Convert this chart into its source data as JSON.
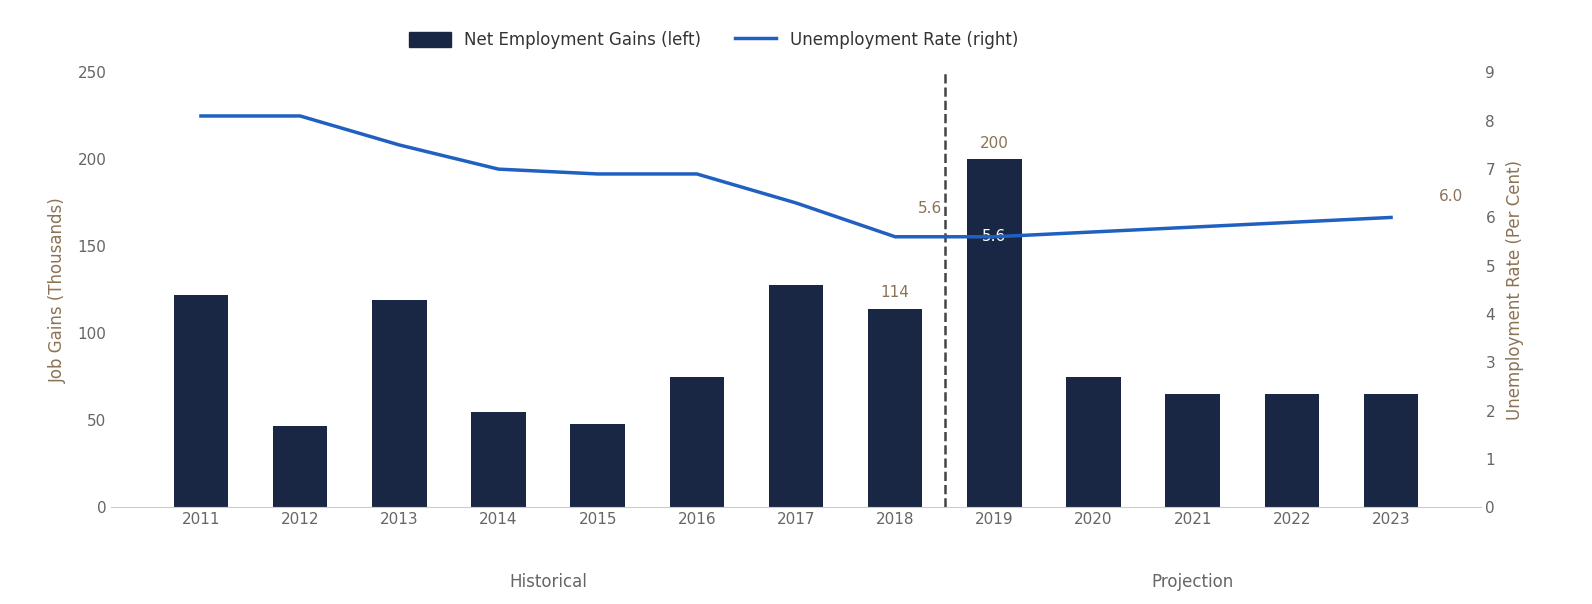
{
  "years": [
    2011,
    2012,
    2013,
    2014,
    2015,
    2016,
    2017,
    2018,
    2019,
    2020,
    2021,
    2022,
    2023
  ],
  "bar_values": [
    122,
    47,
    119,
    55,
    48,
    75,
    128,
    114,
    200,
    75,
    65,
    65,
    65
  ],
  "unemployment_rate": [
    8.1,
    8.1,
    7.5,
    7.0,
    6.9,
    6.9,
    6.3,
    5.6,
    5.6,
    5.7,
    5.8,
    5.9,
    6.0
  ],
  "bar_color": "#1a2744",
  "line_color": "#2060c0",
  "annotation_2018_bar": "114",
  "annotation_2018_rate": "5.6",
  "annotation_2019_bar": "200",
  "annotation_2019_rate": "5.6",
  "annotation_2023_rate": "6.0",
  "ylabel_left": "Job Gains (Thousands)",
  "ylabel_right": "Unemployment Rate (Per Cent)",
  "ylim_left": [
    0,
    250
  ],
  "ylim_right": [
    0,
    9
  ],
  "yticks_left": [
    0,
    50,
    100,
    150,
    200,
    250
  ],
  "yticks_right": [
    0,
    1,
    2,
    3,
    4,
    5,
    6,
    7,
    8,
    9
  ],
  "legend_bar_label": "Net Employment Gains (left)",
  "legend_line_label": "Unemployment Rate (right)",
  "xlabel_historical": "Historical",
  "xlabel_projection": "Projection",
  "background_color": "#ffffff",
  "fig_background": "#ffffff",
  "label_fontsize": 12,
  "tick_fontsize": 11,
  "annotation_fontsize": 11,
  "annotation_color": "#8b7355",
  "axis_label_color": "#8b7355",
  "tick_color": "#666666"
}
